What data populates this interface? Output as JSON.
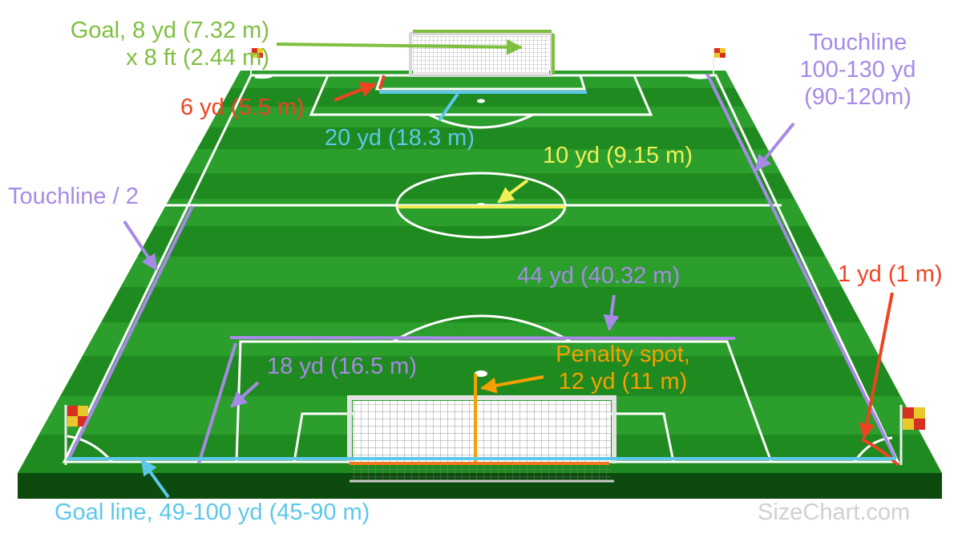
{
  "colors": {
    "goal": "#7fbf3f",
    "six_yard": "#ee4422",
    "penalty_area": "#a78ae8",
    "touchline": "#a78ae8",
    "goal_line": "#5cc8ec",
    "penalty_spot": "#f5a000",
    "center_circle": "#f2ee58",
    "corner_arc": "#ee4422",
    "watermark": "#d0d0d0",
    "grass_dark": "#1f8a1f",
    "grass_light": "#32a832"
  },
  "labels": {
    "goal_line1": "Goal, 8 yd (7.32 m)",
    "goal_line2": "x 8 ft (2.44 m)",
    "six_yard": "6 yd (5.5 m)",
    "twenty_yard": "20 yd (18.3 m)",
    "ten_yard": "10 yd (9.15 m)",
    "touchline_line1": "Touchline",
    "touchline_line2": "100-130 yd",
    "touchline_line3": "(90-120m)",
    "touchline_half": "Touchline / 2",
    "forty_four": "44 yd (40.32 m)",
    "one_yard": "1 yd (1 m)",
    "eighteen_yard": "18 yd (16.5 m)",
    "penalty_line1": "Penalty spot,",
    "penalty_line2": "12 yd (11 m)",
    "goal_line_width": "Goal line, 49-100 yd (45-90 m)",
    "watermark": "SizeChart.com"
  },
  "icons": [
    "corner-flag-icon",
    "goal-net-icon",
    "dimension-arrow-icon"
  ]
}
